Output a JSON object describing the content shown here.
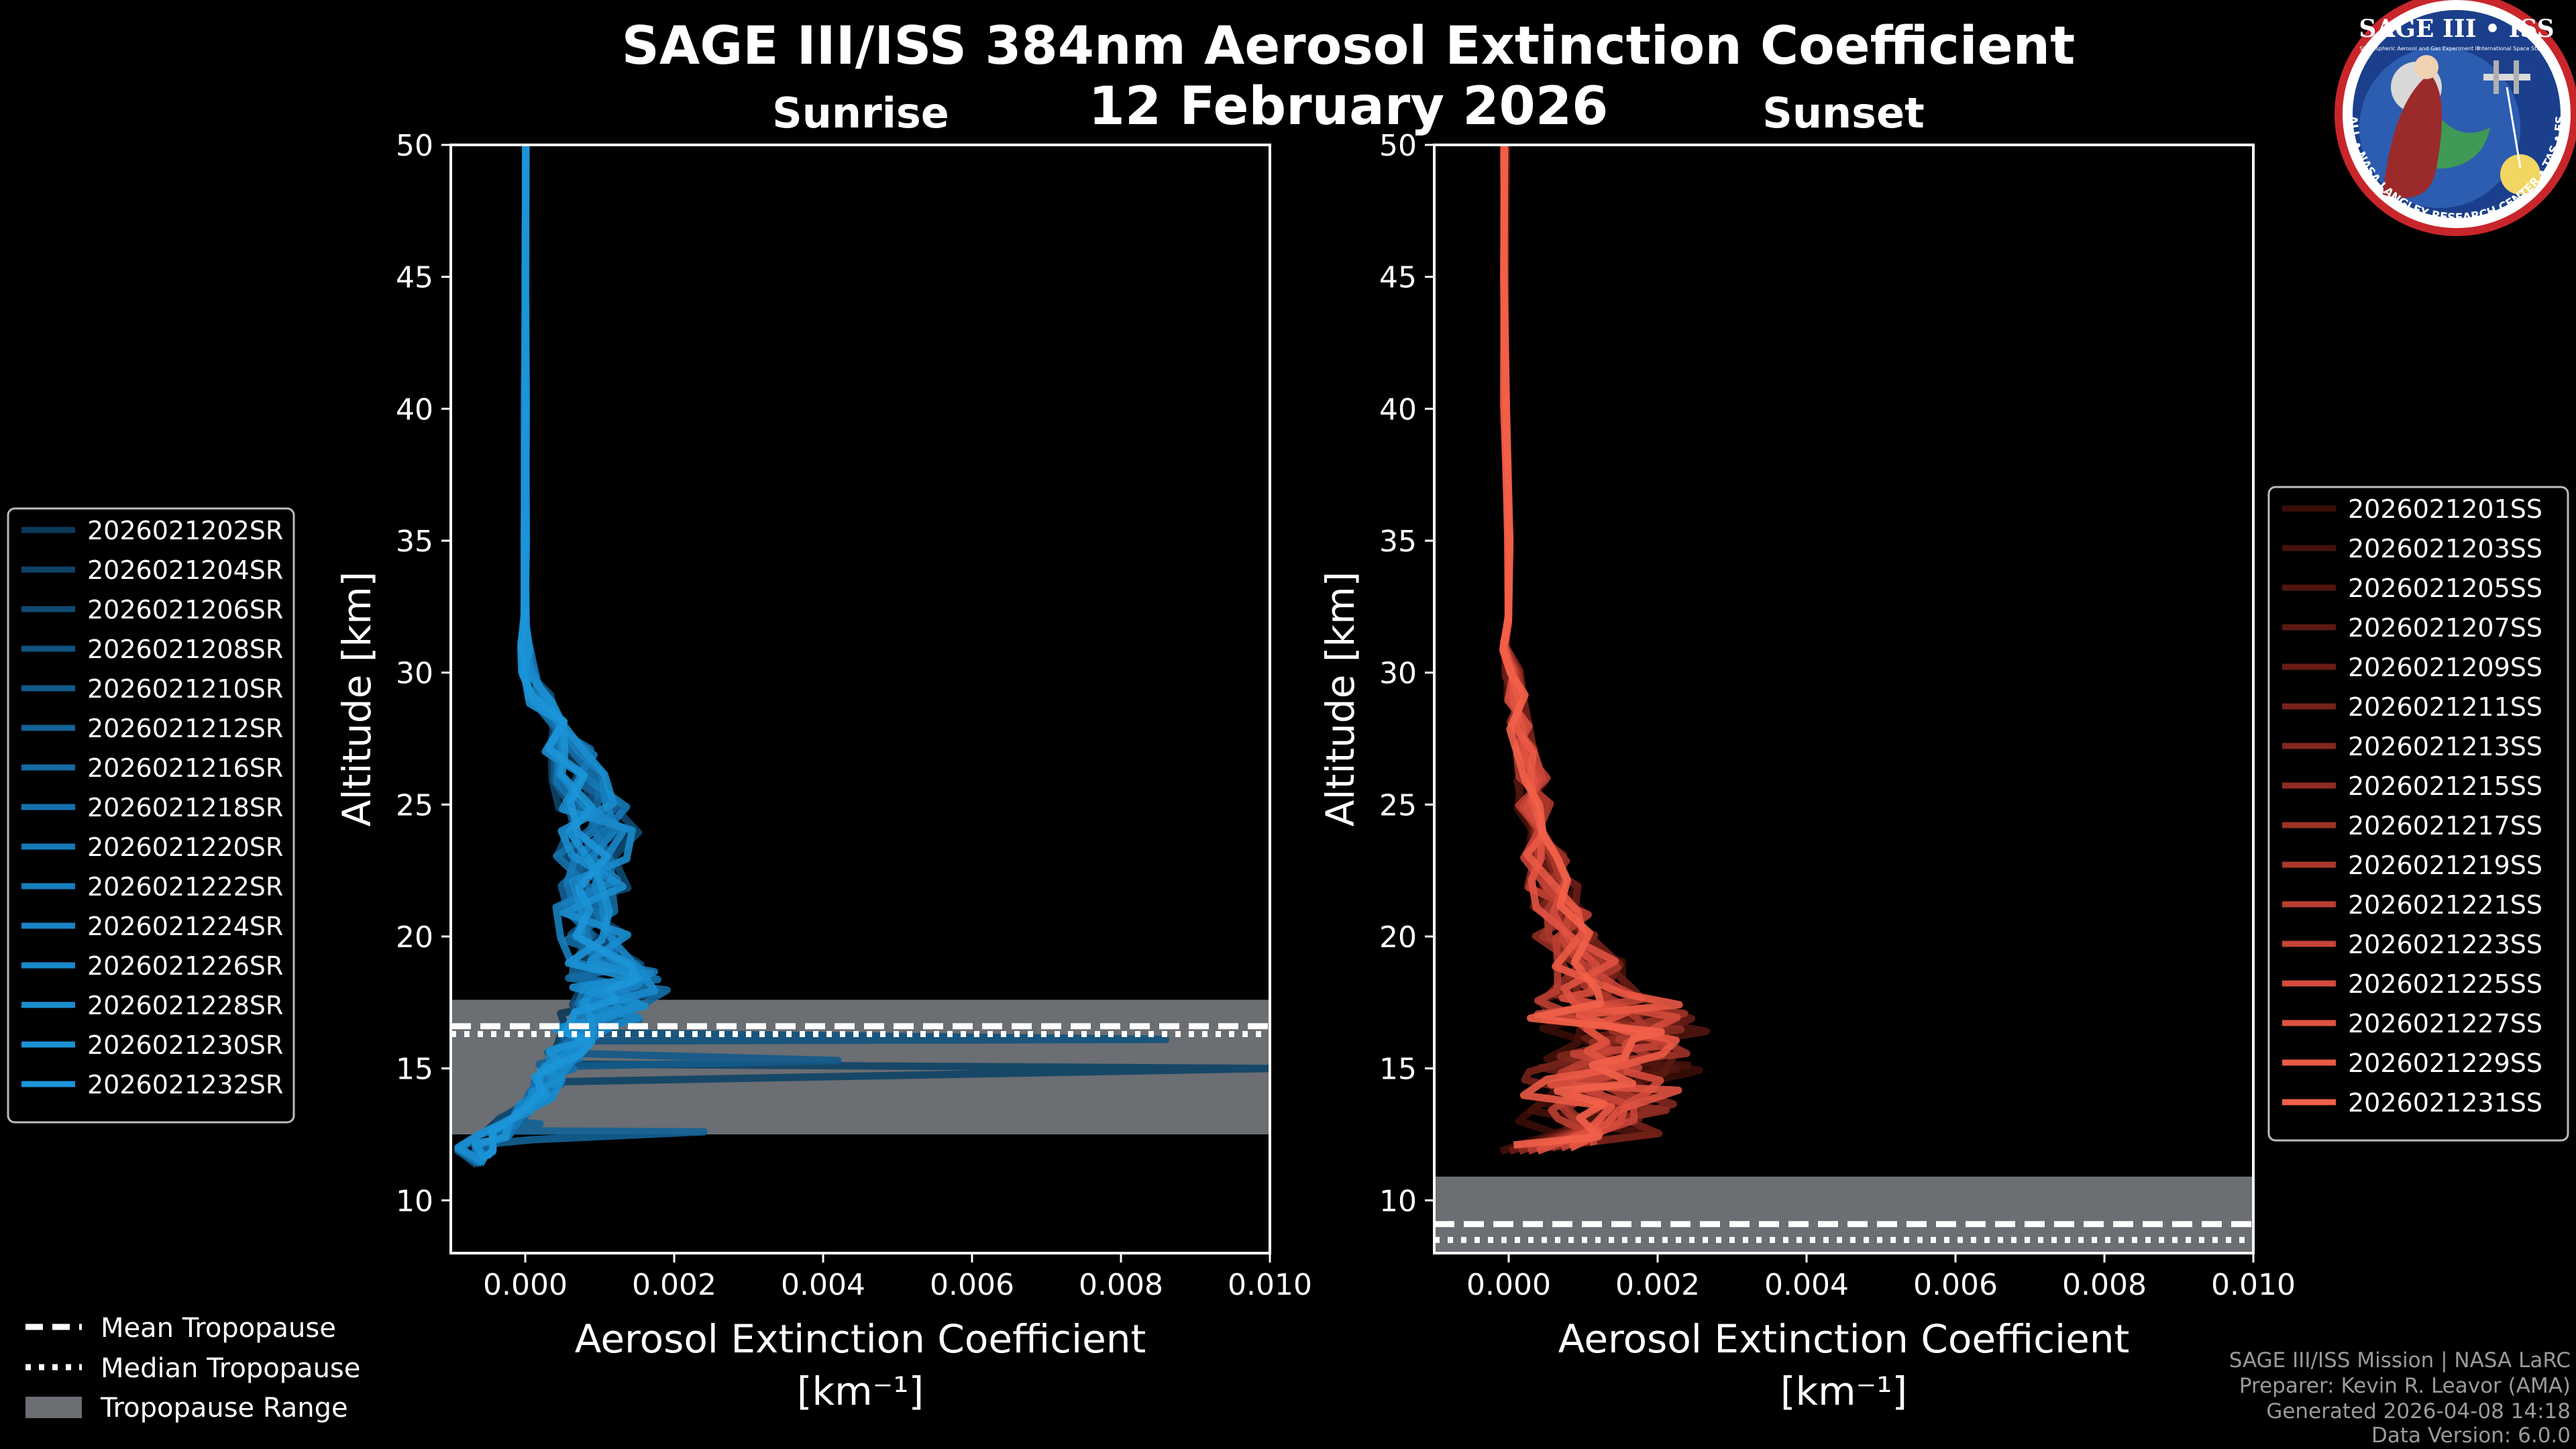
{
  "figure": {
    "title_line1": "SAGE III/ISS 384nm Aerosol Extinction Coefficient",
    "title_line2": "12 February 2026",
    "credits": [
      "SAGE III/ISS Mission | NASA LaRC",
      "Preparer: Kevin R. Leavor (AMA)",
      "Generated 2026-04-08 14:18",
      "Data Version: 6.0.0"
    ],
    "logo": {
      "top_text": "SAGE III • ISS",
      "ring_text": "BALL • NASA LANGLEY RESEARCH CENTER • TAS • ESA",
      "left_text": "Stratospheric Aerosol and Gas Experiment III",
      "right_text": "International Space Station"
    },
    "colors": {
      "sunrise": "#1a8fd1",
      "sunset": "#ef5a45",
      "range": "#6b6e72"
    }
  },
  "chart_data": [
    {
      "type": "line",
      "panel": "sunrise",
      "title": "Sunrise",
      "xlabel": "Aerosol Extinction Coefficient",
      "xunit": "[km⁻¹]",
      "ylabel": "Altitude [km]",
      "xlim": [
        -0.001,
        0.01
      ],
      "ylim": [
        8,
        50
      ],
      "xticks": [
        0.0,
        0.002,
        0.004,
        0.006,
        0.008,
        0.01
      ],
      "xtick_labels": [
        "0.000",
        "0.002",
        "0.004",
        "0.006",
        "0.008",
        "0.010"
      ],
      "yticks": [
        10,
        15,
        20,
        25,
        30,
        35,
        40,
        45,
        50
      ],
      "ytick_labels": [
        "10",
        "15",
        "20",
        "25",
        "30",
        "35",
        "40",
        "45",
        "50"
      ],
      "tropopause": {
        "mean": 16.6,
        "median": 16.3,
        "range": [
          12.5,
          17.6
        ]
      },
      "legend_position": "outside-left",
      "series": [
        {
          "name": "2026021202SR",
          "color": "#0c3a5a"
        },
        {
          "name": "2026021204SR",
          "color": "#0e4266"
        },
        {
          "name": "2026021206SR",
          "color": "#0f4a72"
        },
        {
          "name": "2026021208SR",
          "color": "#11527e"
        },
        {
          "name": "2026021210SR",
          "color": "#125a8a"
        },
        {
          "name": "2026021212SR",
          "color": "#136296"
        },
        {
          "name": "2026021216SR",
          "color": "#146aa2"
        },
        {
          "name": "2026021218SR",
          "color": "#1572ae"
        },
        {
          "name": "2026021220SR",
          "color": "#1679b7"
        },
        {
          "name": "2026021222SR",
          "color": "#177fbf"
        },
        {
          "name": "2026021224SR",
          "color": "#1884c6"
        },
        {
          "name": "2026021226SR",
          "color": "#1989cb"
        },
        {
          "name": "2026021228SR",
          "color": "#1a8dcf"
        },
        {
          "name": "2026021230SR",
          "color": "#1b91d3"
        },
        {
          "name": "2026021232SR",
          "color": "#1c95d8"
        }
      ],
      "profile_template": {
        "altitude": [
          11.5,
          12,
          12.5,
          13,
          13.5,
          14,
          14.5,
          15,
          15.5,
          16,
          16.5,
          17,
          17.5,
          18,
          18.5,
          19,
          20,
          21,
          22,
          23,
          24,
          25,
          26,
          27,
          28,
          29,
          30,
          31,
          32,
          35,
          40,
          45,
          50
        ],
        "value": [
          -0.0008,
          -0.0006,
          -0.0004,
          -0.0002,
          0.0,
          0.0002,
          0.0003,
          0.0004,
          0.0005,
          0.0006,
          0.0008,
          0.001,
          0.0012,
          0.0013,
          0.0012,
          0.0011,
          0.0009,
          0.0008,
          0.0009,
          0.0009,
          0.001,
          0.0009,
          0.0008,
          0.0006,
          0.0004,
          0.0002,
          5e-05,
          0.0,
          0.0,
          0.0,
          0.0,
          0.0,
          0.0
        ]
      },
      "spikes": [
        {
          "series": "2026021204SR",
          "altitude": [
            14.5,
            15.0,
            15.5
          ],
          "value": [
            0.0006,
            0.01,
            0.0004
          ]
        },
        {
          "series": "2026021208SR",
          "altitude": [
            15.8,
            16.1,
            16.4
          ],
          "value": [
            0.0005,
            0.0086,
            0.0006
          ]
        },
        {
          "series": "2026021210SR",
          "altitude": [
            15.0,
            15.3,
            15.6
          ],
          "value": [
            0.0004,
            0.0042,
            0.0003
          ]
        },
        {
          "series": "2026021212SR",
          "altitude": [
            12.3,
            12.6,
            12.9
          ],
          "value": [
            0.0001,
            0.0024,
            0.0002
          ]
        }
      ]
    },
    {
      "type": "line",
      "panel": "sunset",
      "title": "Sunset",
      "xlabel": "Aerosol Extinction Coefficient",
      "xunit": "[km⁻¹]",
      "ylabel": "Altitude [km]",
      "xlim": [
        -0.001,
        0.01
      ],
      "ylim": [
        8,
        50
      ],
      "xticks": [
        0.0,
        0.002,
        0.004,
        0.006,
        0.008,
        0.01
      ],
      "xtick_labels": [
        "0.000",
        "0.002",
        "0.004",
        "0.006",
        "0.008",
        "0.010"
      ],
      "yticks": [
        10,
        15,
        20,
        25,
        30,
        35,
        40,
        45,
        50
      ],
      "ytick_labels": [
        "10",
        "15",
        "20",
        "25",
        "30",
        "35",
        "40",
        "45",
        "50"
      ],
      "tropopause": {
        "mean": 9.1,
        "median": 8.5,
        "range": [
          8,
          10.9
        ]
      },
      "legend_position": "outside-right",
      "series": [
        {
          "name": "2026021201SS",
          "color": "#3a0d08"
        },
        {
          "name": "2026021203SS",
          "color": "#45110b"
        },
        {
          "name": "2026021205SS",
          "color": "#50150e"
        },
        {
          "name": "2026021207SS",
          "color": "#5c1911"
        },
        {
          "name": "2026021209SS",
          "color": "#681d15"
        },
        {
          "name": "2026021211SS",
          "color": "#752219"
        },
        {
          "name": "2026021213SS",
          "color": "#82271d"
        },
        {
          "name": "2026021215SS",
          "color": "#8f2c22"
        },
        {
          "name": "2026021217SS",
          "color": "#9d3227"
        },
        {
          "name": "2026021219SS",
          "color": "#ab382c"
        },
        {
          "name": "2026021221SS",
          "color": "#b93e31"
        },
        {
          "name": "2026021223SS",
          "color": "#c74437"
        },
        {
          "name": "2026021225SS",
          "color": "#d44b3c"
        },
        {
          "name": "2026021227SS",
          "color": "#e05241"
        },
        {
          "name": "2026021229SS",
          "color": "#ea5945"
        },
        {
          "name": "2026021231SS",
          "color": "#f26049"
        }
      ],
      "profile_template": {
        "altitude": [
          12,
          12.5,
          13,
          13.5,
          14,
          14.5,
          15,
          15.5,
          16,
          16.5,
          17,
          17.5,
          18,
          19,
          20,
          21,
          22,
          23,
          24,
          25,
          26,
          27,
          28,
          29,
          30,
          31,
          32,
          35,
          40,
          45,
          50
        ],
        "value": [
          0.0009,
          0.001,
          0.0011,
          0.0012,
          0.0013,
          0.0014,
          0.0015,
          0.0015,
          0.0015,
          0.0014,
          0.0013,
          0.0012,
          0.0011,
          0.001,
          0.0008,
          0.0007,
          0.0006,
          0.0005,
          0.0004,
          0.00035,
          0.0003,
          0.0002,
          0.00015,
          0.0001,
          5e-05,
          0.0,
          0.0,
          0.0,
          -5e-05,
          -5e-05,
          -5e-05
        ]
      }
    }
  ]
}
